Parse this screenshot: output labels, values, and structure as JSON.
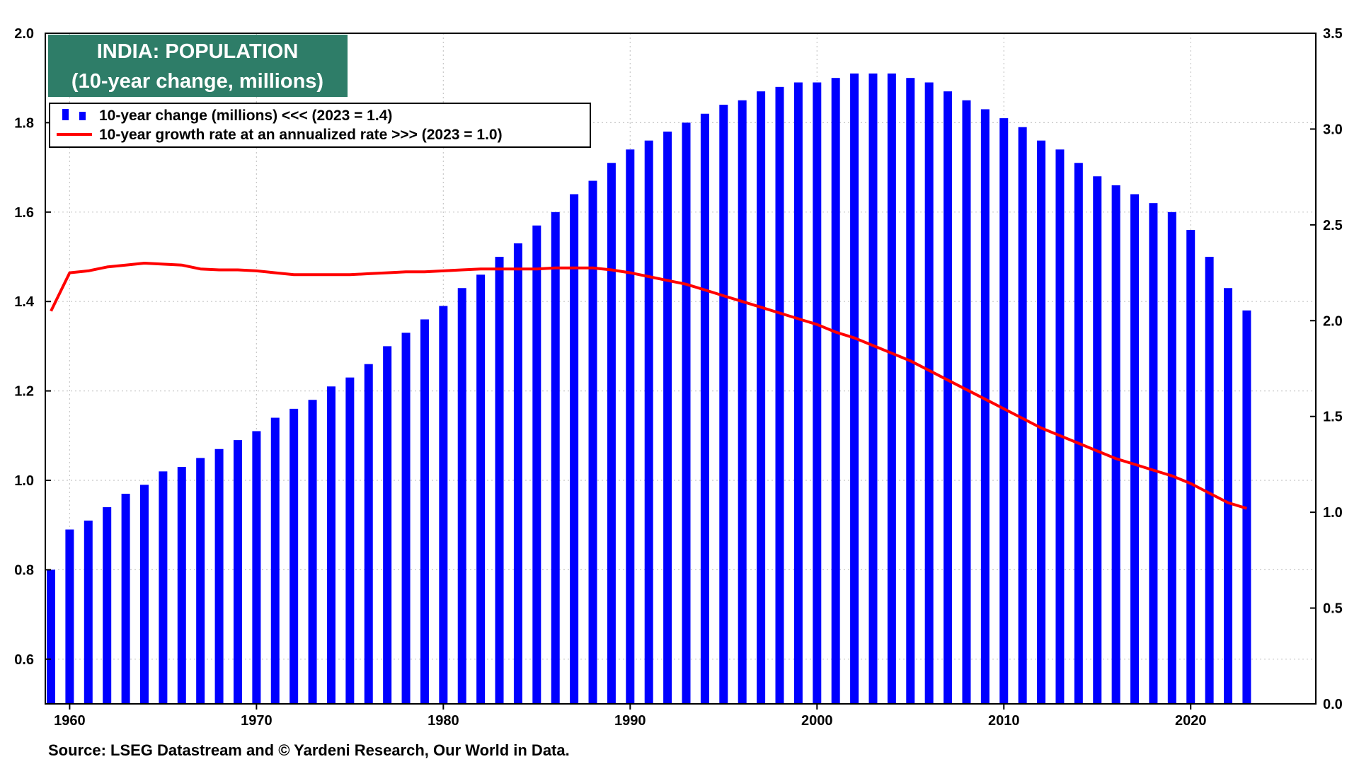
{
  "title": {
    "line1": "INDIA: POPULATION",
    "line2": "(10-year change, millions)"
  },
  "legend": {
    "bars_label": "10-year change (millions) <<< (2023 = 1.4)",
    "line_label": "10-year growth rate at an annualized rate >>> (2023 = 1.0)"
  },
  "source": "Source: LSEG Datastream and © Yardeni Research, Our World in Data.",
  "colors": {
    "bars": "#0000ff",
    "line": "#ff0000",
    "title_bg": "#2e7d68",
    "grid": "#c8c8c8"
  },
  "chart_data": {
    "type": "bar",
    "x": [
      1959,
      1960,
      1961,
      1962,
      1963,
      1964,
      1965,
      1966,
      1967,
      1968,
      1969,
      1970,
      1971,
      1972,
      1973,
      1974,
      1975,
      1976,
      1977,
      1978,
      1979,
      1980,
      1981,
      1982,
      1983,
      1984,
      1985,
      1986,
      1987,
      1988,
      1989,
      1990,
      1991,
      1992,
      1993,
      1994,
      1995,
      1996,
      1997,
      1998,
      1999,
      2000,
      2001,
      2002,
      2003,
      2004,
      2005,
      2006,
      2007,
      2008,
      2009,
      2010,
      2011,
      2012,
      2013,
      2014,
      2015,
      2016,
      2017,
      2018,
      2019,
      2020,
      2021,
      2022,
      2023
    ],
    "xlim": [
      1959,
      2027
    ],
    "x_ticks": [
      "1960",
      "1970",
      "1980",
      "1990",
      "2000",
      "2010",
      "2020"
    ],
    "series": [
      {
        "axis": "left",
        "type": "bar",
        "values": [
          0.8,
          0.89,
          0.91,
          0.94,
          0.97,
          0.99,
          1.02,
          1.03,
          1.05,
          1.07,
          1.09,
          1.11,
          1.14,
          1.16,
          1.18,
          1.21,
          1.23,
          1.26,
          1.3,
          1.33,
          1.36,
          1.39,
          1.43,
          1.46,
          1.5,
          1.53,
          1.57,
          1.6,
          1.64,
          1.67,
          1.71,
          1.74,
          1.76,
          1.78,
          1.8,
          1.82,
          1.84,
          1.85,
          1.87,
          1.88,
          1.89,
          1.89,
          1.9,
          1.91,
          1.91,
          1.91,
          1.9,
          1.89,
          1.87,
          1.85,
          1.83,
          1.81,
          1.79,
          1.76,
          1.74,
          1.71,
          1.68,
          1.66,
          1.64,
          1.62,
          1.6,
          1.56,
          1.5,
          1.43,
          1.38
        ]
      },
      {
        "axis": "right",
        "type": "line",
        "values": [
          2.05,
          2.25,
          2.26,
          2.28,
          2.29,
          2.3,
          2.295,
          2.29,
          2.27,
          2.265,
          2.265,
          2.26,
          2.25,
          2.24,
          2.24,
          2.24,
          2.24,
          2.245,
          2.25,
          2.255,
          2.255,
          2.26,
          2.265,
          2.27,
          2.27,
          2.27,
          2.27,
          2.275,
          2.275,
          2.275,
          2.265,
          2.25,
          2.23,
          2.21,
          2.19,
          2.16,
          2.13,
          2.1,
          2.07,
          2.04,
          2.01,
          1.98,
          1.94,
          1.91,
          1.87,
          1.83,
          1.79,
          1.74,
          1.69,
          1.64,
          1.59,
          1.54,
          1.49,
          1.44,
          1.4,
          1.36,
          1.32,
          1.28,
          1.25,
          1.22,
          1.19,
          1.15,
          1.1,
          1.05,
          1.02
        ]
      }
    ],
    "y_left": {
      "lim": [
        0.5,
        2.0
      ],
      "ticks": [
        "2.0",
        "1.8",
        "1.6",
        "1.4",
        "1.2",
        "1.0",
        "0.8",
        "0.6"
      ]
    },
    "y_right": {
      "lim": [
        0.0,
        3.5
      ],
      "ticks": [
        "3.5",
        "3.0",
        "2.5",
        "2.0",
        "1.5",
        "1.0",
        "0.5",
        "0.0"
      ]
    },
    "grid": true,
    "legend_position": "top-left"
  }
}
